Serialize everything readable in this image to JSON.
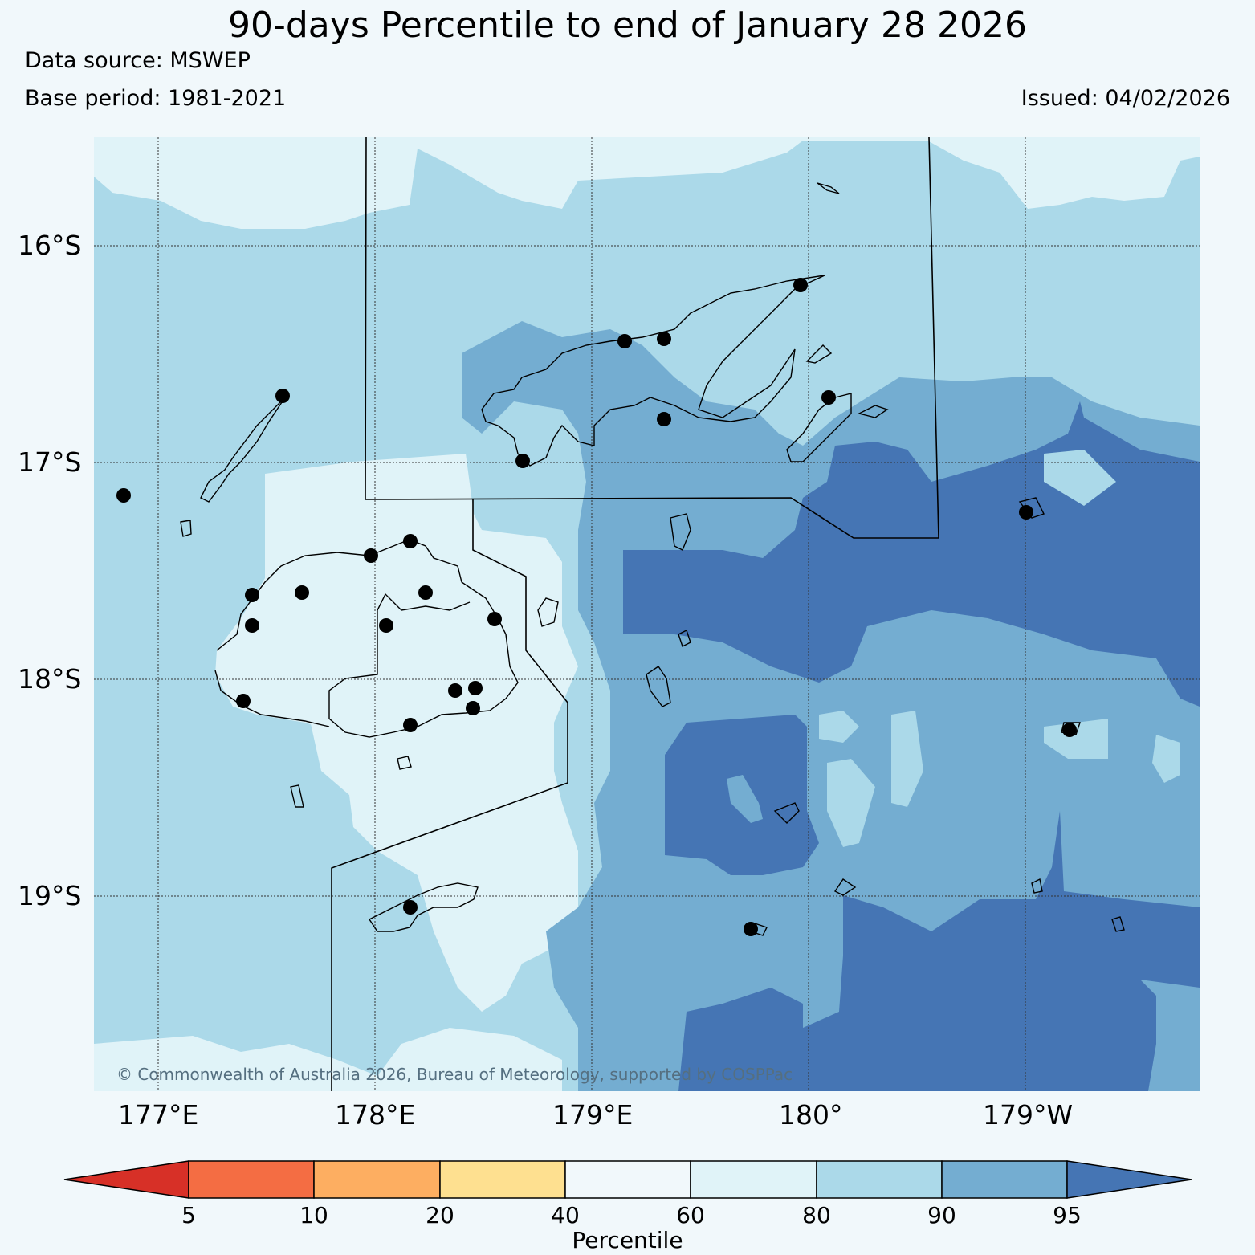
{
  "title": "90-days Percentile to end of January 28 2026",
  "data_source": "Data source: MSWEP",
  "base_period": "Base period: 1981-2021",
  "issued": "Issued: 04/02/2026",
  "copyright": "© Commonwealth of Australia 2026, Bureau of Meteorology, supported by COSPPac",
  "lat_ticks": [
    "16°S",
    "17°S",
    "18°S",
    "19°S"
  ],
  "lon_ticks": [
    "177°E",
    "178°E",
    "179°E",
    "180°",
    "179°W"
  ],
  "colorbar": {
    "label": "Percentile",
    "ticks": [
      "5",
      "10",
      "20",
      "40",
      "60",
      "80",
      "90",
      "95"
    ],
    "colors": [
      "#d73027",
      "#f46d43",
      "#fdae61",
      "#fee090",
      "#f1f8fb",
      "#e0f3f8",
      "#abd9e9",
      "#74add1",
      "#4575b4"
    ]
  }
}
